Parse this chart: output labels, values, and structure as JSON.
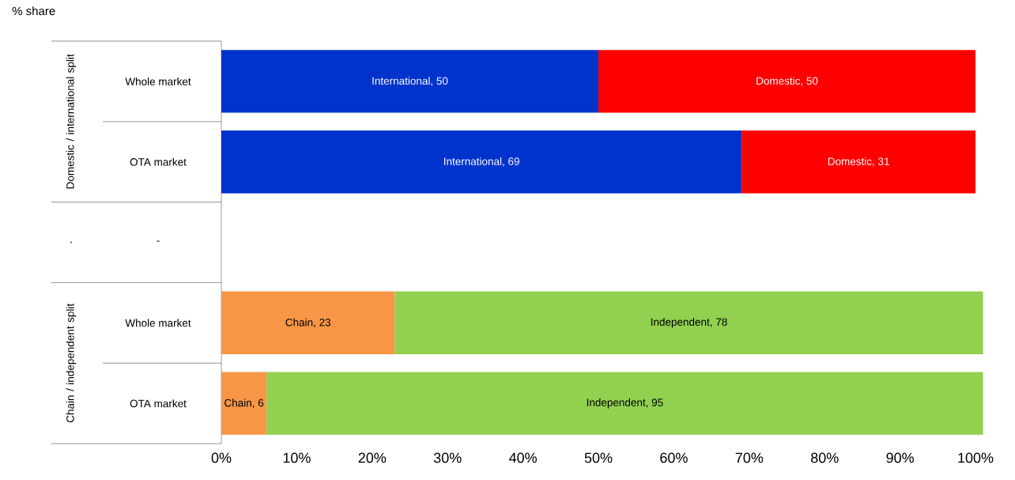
{
  "chart_data": {
    "type": "bar",
    "orientation": "horizontal",
    "stacked": true,
    "title": "% share",
    "categories": [
      "Whole market",
      "OTA market",
      "-",
      "Whole market",
      "OTA market"
    ],
    "xlim": [
      0,
      101
    ],
    "xticks": [
      {
        "value": 0,
        "label": "0%"
      },
      {
        "value": 10,
        "label": "10%"
      },
      {
        "value": 20,
        "label": "20%"
      },
      {
        "value": 30,
        "label": "30%"
      },
      {
        "value": 40,
        "label": "40%"
      },
      {
        "value": 50,
        "label": "50%"
      },
      {
        "value": 60,
        "label": "60%"
      },
      {
        "value": 70,
        "label": "70%"
      },
      {
        "value": 80,
        "label": "80%"
      },
      {
        "value": 90,
        "label": "90%"
      },
      {
        "value": 100,
        "label": "100%"
      }
    ],
    "annotations": [
      "Domestic / international split",
      ".",
      "Chain / independent split"
    ],
    "series": [
      {
        "color": "#0033cc",
        "values": [
          50,
          69,
          null,
          null,
          null
        ],
        "value_labels": [
          "International, 50",
          "International, 69",
          null,
          null,
          null
        ]
      },
      {
        "color": "#ff0000",
        "values": [
          50,
          31,
          null,
          null,
          null
        ],
        "value_labels": [
          "Domestic, 50",
          "Domestic, 31",
          null,
          null,
          null
        ]
      },
      {
        "color": "#f79646",
        "values": [
          null,
          null,
          null,
          23,
          6
        ],
        "value_labels": [
          null,
          null,
          null,
          "Chain, 23",
          "Chain, 6"
        ]
      },
      {
        "color": "#92d050",
        "values": [
          null,
          null,
          null,
          78,
          95
        ],
        "value_labels": [
          null,
          null,
          null,
          "Independent, 78",
          "Independent, 95"
        ]
      }
    ]
  }
}
